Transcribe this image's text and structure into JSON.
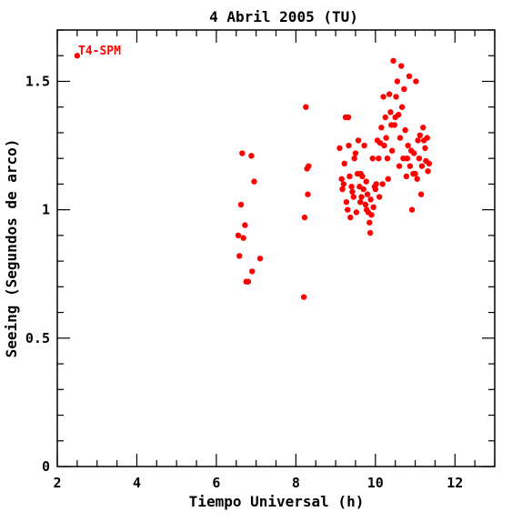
{
  "chart_data": {
    "type": "scatter",
    "title": "4 Abril 2005 (TU)",
    "xlabel": "Tiempo Universal (h)",
    "ylabel": "Seeing (Segundos de arco)",
    "xlim": [
      2,
      13
    ],
    "ylim": [
      0,
      1.7
    ],
    "xticks": [
      2,
      4,
      6,
      8,
      10,
      12
    ],
    "yticks": [
      0,
      0.5,
      1,
      1.5
    ],
    "ytick_labels": [
      "0",
      "0.5",
      "1",
      "1.5"
    ],
    "grid": false,
    "legend": {
      "position": "top-left",
      "label": "T4-SPM",
      "color": "#ff0000"
    },
    "color": "#ff0000",
    "series": [
      {
        "name": "T4-SPM",
        "points": [
          [
            2.5,
            1.6
          ],
          [
            6.55,
            0.9
          ],
          [
            6.58,
            0.82
          ],
          [
            6.62,
            1.02
          ],
          [
            6.65,
            1.22
          ],
          [
            6.68,
            0.89
          ],
          [
            6.72,
            0.94
          ],
          [
            6.75,
            0.72
          ],
          [
            6.8,
            0.72
          ],
          [
            6.88,
            1.21
          ],
          [
            6.9,
            0.76
          ],
          [
            6.95,
            1.11
          ],
          [
            7.1,
            0.81
          ],
          [
            8.2,
            0.66
          ],
          [
            8.22,
            0.97
          ],
          [
            8.25,
            1.4
          ],
          [
            8.28,
            1.16
          ],
          [
            8.3,
            1.06
          ],
          [
            8.32,
            1.17
          ],
          [
            9.1,
            1.24
          ],
          [
            9.15,
            1.12
          ],
          [
            9.17,
            1.08
          ],
          [
            9.2,
            1.1
          ],
          [
            9.22,
            1.18
          ],
          [
            9.25,
            1.36
          ],
          [
            9.27,
            1.03
          ],
          [
            9.3,
            1.0
          ],
          [
            9.32,
            1.36
          ],
          [
            9.33,
            1.25
          ],
          [
            9.35,
            1.13
          ],
          [
            9.37,
            0.97
          ],
          [
            9.4,
            1.09
          ],
          [
            9.42,
            1.07
          ],
          [
            9.45,
            1.05
          ],
          [
            9.47,
            1.2
          ],
          [
            9.5,
            1.22
          ],
          [
            9.52,
            0.99
          ],
          [
            9.55,
            1.14
          ],
          [
            9.57,
            1.27
          ],
          [
            9.6,
            1.09
          ],
          [
            9.62,
            1.03
          ],
          [
            9.63,
            1.14
          ],
          [
            9.65,
            1.05
          ],
          [
            9.67,
            1.13
          ],
          [
            9.7,
            1.08
          ],
          [
            9.72,
            1.25
          ],
          [
            9.75,
            1.02
          ],
          [
            9.77,
            1.11
          ],
          [
            9.78,
            1.0
          ],
          [
            9.8,
            1.06
          ],
          [
            9.82,
            0.99
          ],
          [
            9.85,
            0.95
          ],
          [
            9.87,
            0.91
          ],
          [
            9.88,
            1.04
          ],
          [
            9.9,
            0.98
          ],
          [
            9.93,
            1.2
          ],
          [
            9.95,
            1.01
          ],
          [
            9.98,
            1.09
          ],
          [
            10.0,
            1.08
          ],
          [
            10.02,
            1.1
          ],
          [
            10.05,
            1.27
          ],
          [
            10.08,
            1.2
          ],
          [
            10.1,
            1.05
          ],
          [
            10.12,
            1.26
          ],
          [
            10.15,
            1.32
          ],
          [
            10.18,
            1.1
          ],
          [
            10.2,
            1.44
          ],
          [
            10.22,
            1.25
          ],
          [
            10.25,
            1.36
          ],
          [
            10.27,
            1.28
          ],
          [
            10.3,
            1.2
          ],
          [
            10.32,
            1.12
          ],
          [
            10.35,
            1.45
          ],
          [
            10.38,
            1.38
          ],
          [
            10.4,
            1.33
          ],
          [
            10.42,
            1.23
          ],
          [
            10.45,
            1.58
          ],
          [
            10.48,
            1.33
          ],
          [
            10.5,
            1.36
          ],
          [
            10.52,
            1.44
          ],
          [
            10.55,
            1.5
          ],
          [
            10.58,
            1.37
          ],
          [
            10.6,
            1.17
          ],
          [
            10.62,
            1.28
          ],
          [
            10.65,
            1.56
          ],
          [
            10.67,
            1.4
          ],
          [
            10.7,
            1.2
          ],
          [
            10.72,
            1.47
          ],
          [
            10.75,
            1.31
          ],
          [
            10.78,
            1.13
          ],
          [
            10.8,
            1.2
          ],
          [
            10.82,
            1.25
          ],
          [
            10.85,
            1.52
          ],
          [
            10.87,
            1.17
          ],
          [
            10.9,
            1.23
          ],
          [
            10.92,
            1.0
          ],
          [
            10.95,
            1.14
          ],
          [
            10.97,
            1.22
          ],
          [
            11.0,
            1.14
          ],
          [
            11.02,
            1.5
          ],
          [
            11.05,
            1.12
          ],
          [
            11.07,
            1.27
          ],
          [
            11.1,
            1.2
          ],
          [
            11.12,
            1.29
          ],
          [
            11.15,
            1.06
          ],
          [
            11.17,
            1.17
          ],
          [
            11.2,
            1.32
          ],
          [
            11.22,
            1.27
          ],
          [
            11.25,
            1.24
          ],
          [
            11.27,
            1.19
          ],
          [
            11.3,
            1.28
          ],
          [
            11.32,
            1.15
          ],
          [
            11.35,
            1.18
          ]
        ]
      }
    ]
  }
}
